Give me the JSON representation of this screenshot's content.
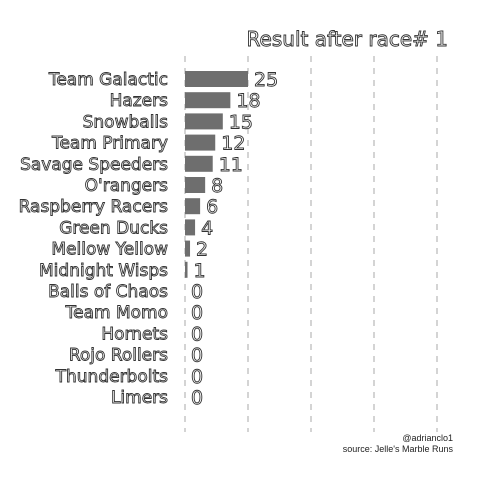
{
  "chart_data": {
    "type": "bar",
    "orientation": "horizontal",
    "title": "Result after race# 1",
    "categories": [
      "Team Galactic",
      "Hazers",
      "Snowballs",
      "Team Primary",
      "Savage Speeders",
      "O'rangers",
      "Raspberry Racers",
      "Green Ducks",
      "Mellow Yellow",
      "Midnight Wisps",
      "Balls of Chaos",
      "Team Momo",
      "Hornets",
      "Rojo Rollers",
      "Thunderbolts",
      "Limers"
    ],
    "values": [
      25,
      18,
      15,
      12,
      11,
      8,
      6,
      4,
      2,
      1,
      0,
      0,
      0,
      0,
      0,
      0
    ],
    "xlim": [
      0,
      100
    ],
    "gridlines": [
      0,
      25,
      50,
      75,
      100
    ],
    "grid": true,
    "bar_color": "#6e6e6e"
  },
  "caption": {
    "author": "@adrianclo1",
    "source": "source: Jelle's Marble Runs"
  }
}
